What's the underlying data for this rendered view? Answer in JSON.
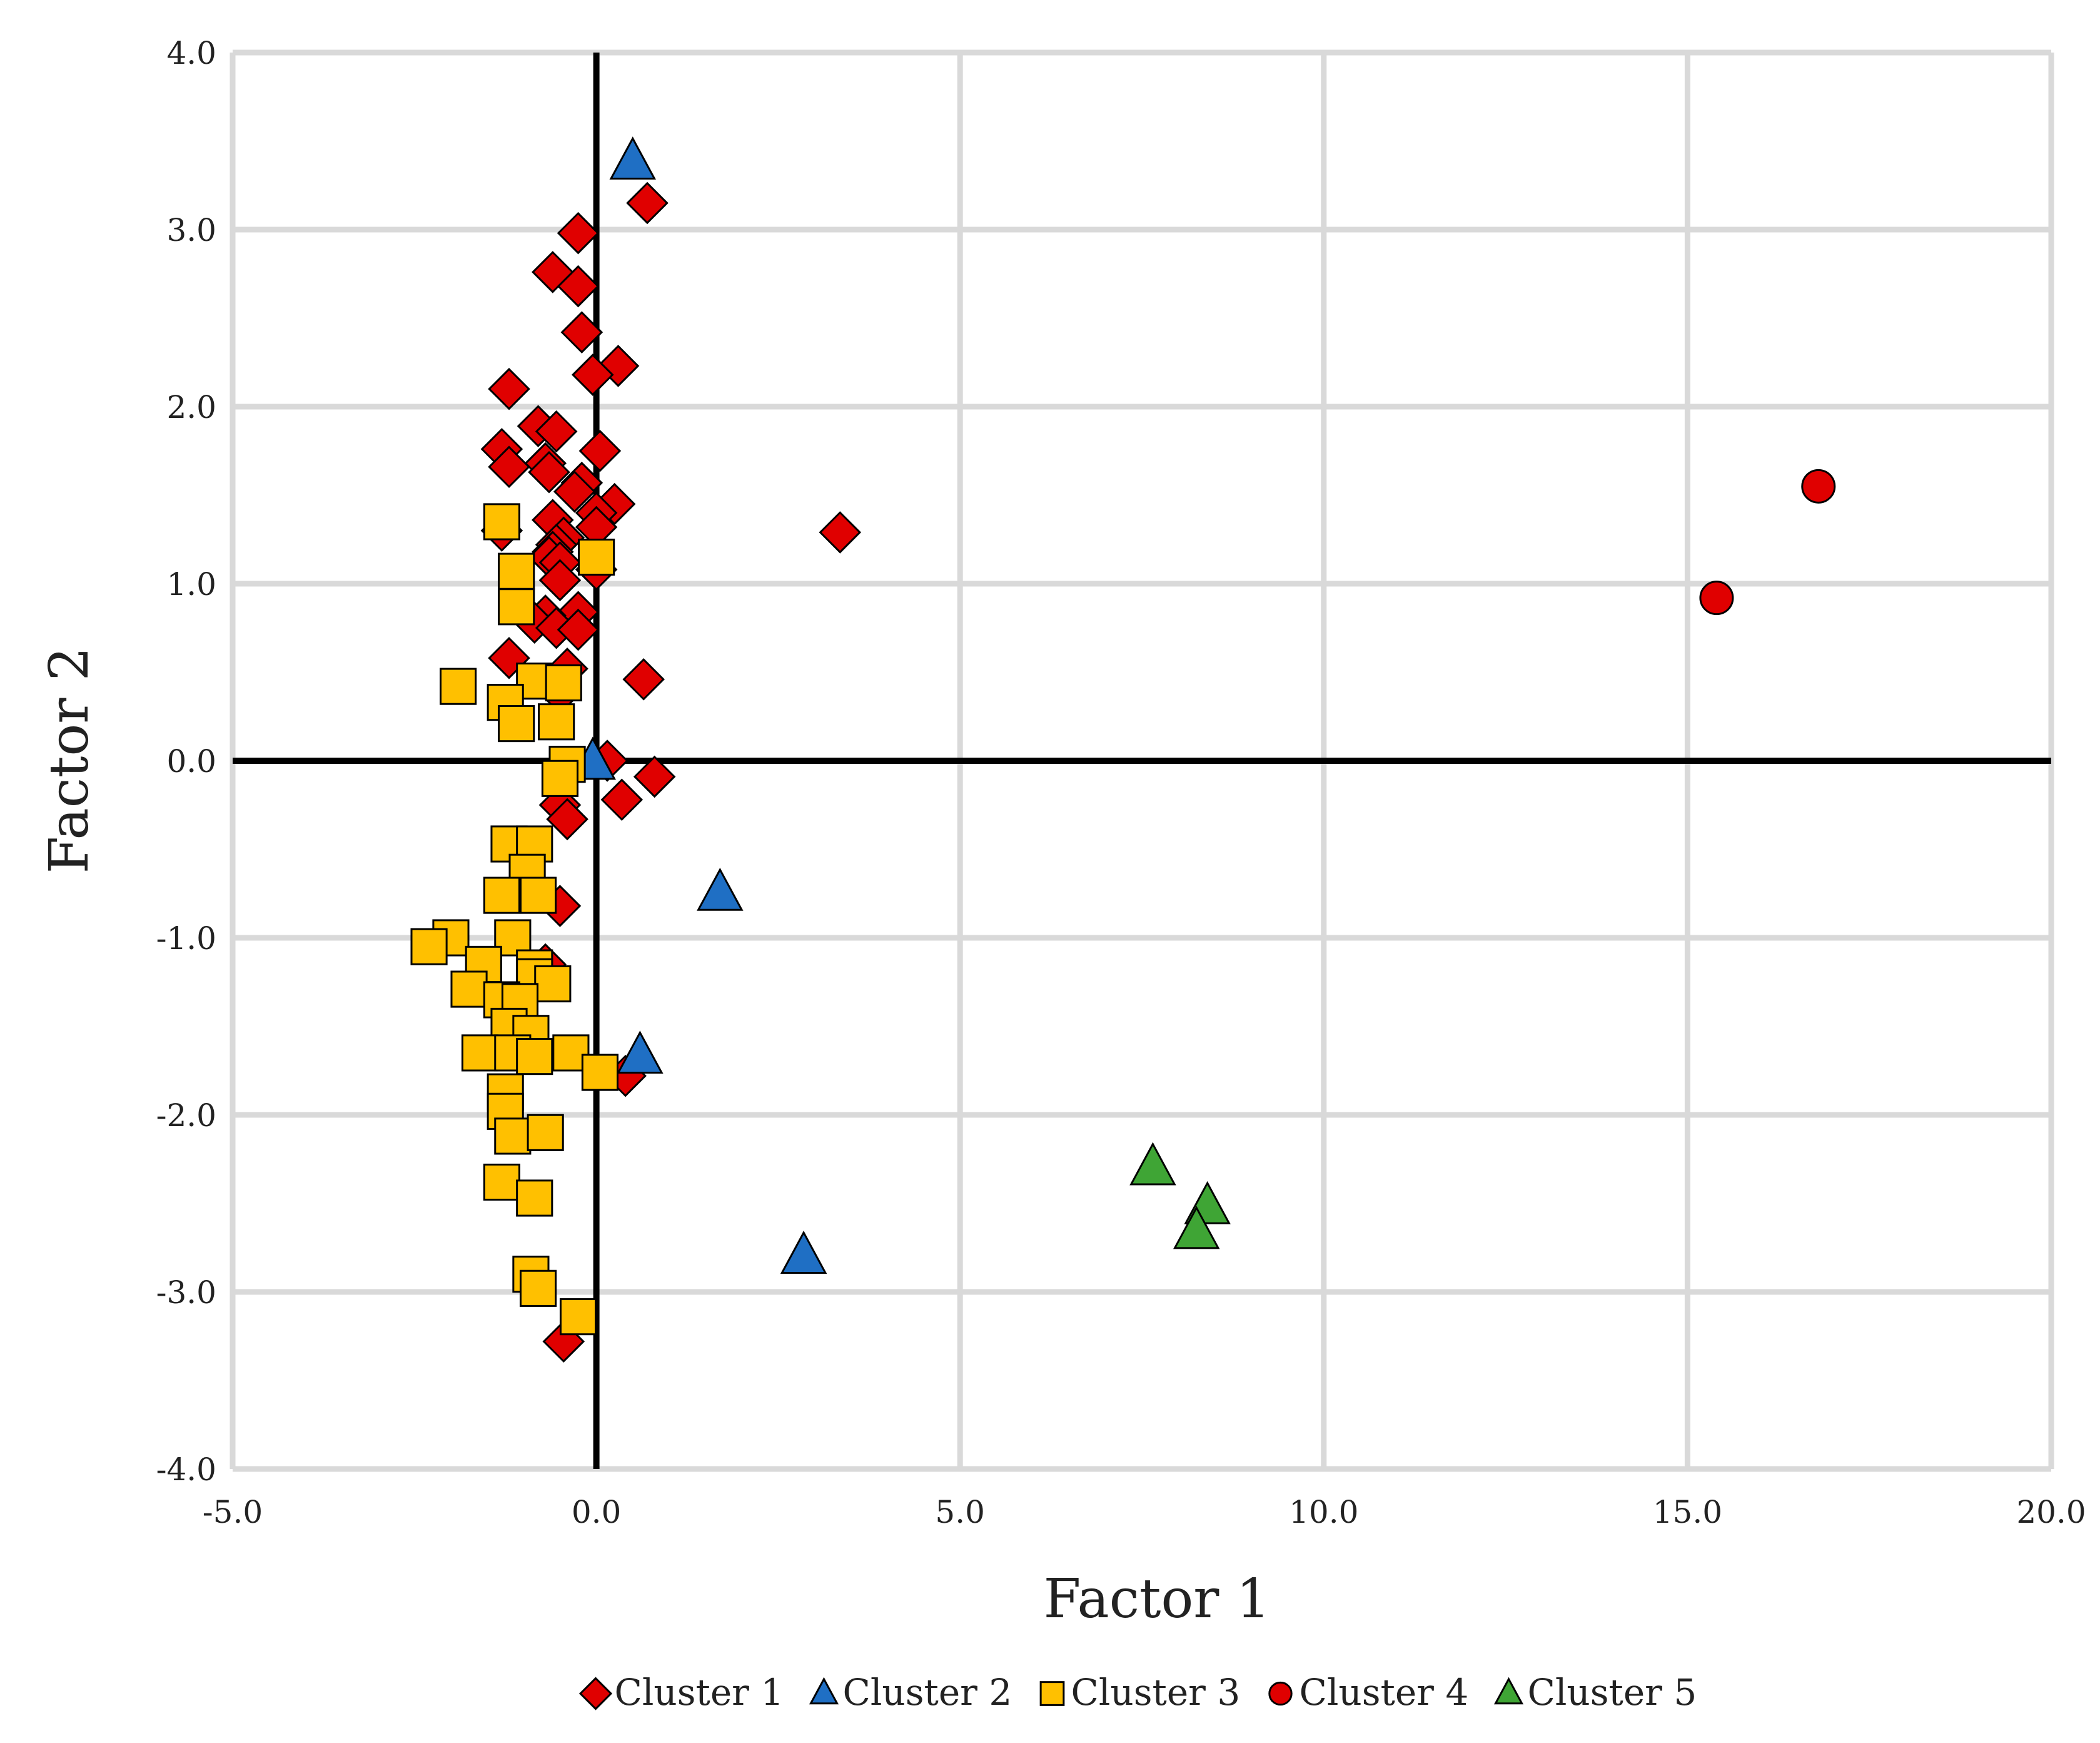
{
  "chart_data": {
    "type": "scatter",
    "title": "",
    "xlabel": "Factor 1",
    "ylabel": "Factor 2",
    "xlim": [
      -5.0,
      20.0
    ],
    "ylim": [
      -4.0,
      4.0
    ],
    "x_ticks": [
      "-5.0",
      "0.0",
      "5.0",
      "10.0",
      "15.0",
      "20.0"
    ],
    "y_ticks": [
      "4.0",
      "3.0",
      "2.0",
      "1.0",
      "0.0",
      "-1.0",
      "-2.0",
      "-3.0",
      "-4.0"
    ],
    "grid": true,
    "reference_lines": {
      "x": 0,
      "y": 0
    },
    "legend_position": "bottom",
    "series": [
      {
        "name": "Cluster 1",
        "marker": "diamond",
        "color": "#e00000",
        "points": [
          [
            0.7,
            3.15
          ],
          [
            -0.25,
            2.98
          ],
          [
            -0.6,
            2.76
          ],
          [
            -0.25,
            2.68
          ],
          [
            -0.2,
            2.42
          ],
          [
            0.3,
            2.23
          ],
          [
            -0.05,
            2.18
          ],
          [
            -1.2,
            2.1
          ],
          [
            -0.8,
            1.89
          ],
          [
            -0.55,
            1.86
          ],
          [
            -1.3,
            1.76
          ],
          [
            0.05,
            1.75
          ],
          [
            -0.7,
            1.68
          ],
          [
            -1.2,
            1.66
          ],
          [
            -0.65,
            1.63
          ],
          [
            -0.2,
            1.57
          ],
          [
            -0.3,
            1.52
          ],
          [
            0.25,
            1.45
          ],
          [
            0.0,
            1.4
          ],
          [
            3.35,
            1.29
          ],
          [
            -0.6,
            1.36
          ],
          [
            0.0,
            1.32
          ],
          [
            -1.3,
            1.3
          ],
          [
            -0.45,
            1.26
          ],
          [
            -0.55,
            1.22
          ],
          [
            -0.6,
            1.18
          ],
          [
            -0.65,
            1.15
          ],
          [
            -0.5,
            1.12
          ],
          [
            0.0,
            1.08
          ],
          [
            -0.5,
            1.02
          ],
          [
            -0.25,
            0.84
          ],
          [
            -0.7,
            0.82
          ],
          [
            -0.85,
            0.78
          ],
          [
            -0.55,
            0.75
          ],
          [
            -0.25,
            0.74
          ],
          [
            -1.2,
            0.58
          ],
          [
            -0.4,
            0.52
          ],
          [
            0.65,
            0.46
          ],
          [
            -0.5,
            0.38
          ],
          [
            0.15,
            0.0
          ],
          [
            0.8,
            -0.09
          ],
          [
            0.35,
            -0.22
          ],
          [
            -0.5,
            -0.25
          ],
          [
            -0.4,
            -0.33
          ],
          [
            -0.5,
            -0.82
          ],
          [
            -0.7,
            -1.15
          ],
          [
            0.4,
            -1.78
          ],
          [
            -0.45,
            -3.28
          ]
        ]
      },
      {
        "name": "Cluster 2",
        "marker": "triangle",
        "color": "#1f6fc4",
        "points": [
          [
            0.5,
            3.38
          ],
          [
            -0.05,
            -0.01
          ],
          [
            1.7,
            -0.75
          ],
          [
            0.6,
            -1.67
          ],
          [
            2.85,
            -2.8
          ]
        ]
      },
      {
        "name": "Cluster 3",
        "marker": "square",
        "color": "#ffc000",
        "points": [
          [
            -1.3,
            1.35
          ],
          [
            0.0,
            1.15
          ],
          [
            -1.1,
            1.07
          ],
          [
            -1.1,
            0.87
          ],
          [
            -1.9,
            0.42
          ],
          [
            -0.85,
            0.45
          ],
          [
            -0.45,
            0.44
          ],
          [
            -1.25,
            0.33
          ],
          [
            -1.1,
            0.21
          ],
          [
            -0.55,
            0.22
          ],
          [
            -0.4,
            -0.02
          ],
          [
            -0.5,
            -0.1
          ],
          [
            -1.2,
            -0.47
          ],
          [
            -0.85,
            -0.47
          ],
          [
            -0.95,
            -0.63
          ],
          [
            -1.3,
            -0.76
          ],
          [
            -0.8,
            -0.76
          ],
          [
            -2.0,
            -1.0
          ],
          [
            -2.3,
            -1.05
          ],
          [
            -1.15,
            -1.0
          ],
          [
            -1.55,
            -1.15
          ],
          [
            -0.85,
            -1.17
          ],
          [
            -0.85,
            -1.22
          ],
          [
            -0.6,
            -1.26
          ],
          [
            -1.75,
            -1.29
          ],
          [
            -1.3,
            -1.35
          ],
          [
            -1.05,
            -1.36
          ],
          [
            -1.2,
            -1.5
          ],
          [
            -0.9,
            -1.54
          ],
          [
            -1.6,
            -1.65
          ],
          [
            -1.15,
            -1.65
          ],
          [
            -0.85,
            -1.67
          ],
          [
            -0.35,
            -1.65
          ],
          [
            0.05,
            -1.76
          ],
          [
            -1.25,
            -1.87
          ],
          [
            -1.25,
            -1.98
          ],
          [
            -1.15,
            -2.12
          ],
          [
            -0.7,
            -2.1
          ],
          [
            -1.3,
            -2.38
          ],
          [
            -0.85,
            -2.47
          ],
          [
            -0.9,
            -2.9
          ],
          [
            -0.8,
            -2.98
          ],
          [
            -0.25,
            -3.14
          ]
        ]
      },
      {
        "name": "Cluster 4",
        "marker": "circle",
        "color": "#e00000",
        "points": [
          [
            16.8,
            1.55
          ],
          [
            15.4,
            0.92
          ]
        ]
      },
      {
        "name": "Cluster 5",
        "marker": "triangle",
        "color": "#3fa535",
        "points": [
          [
            7.65,
            -2.3
          ],
          [
            8.4,
            -2.52
          ],
          [
            8.25,
            -2.66
          ]
        ]
      }
    ]
  }
}
